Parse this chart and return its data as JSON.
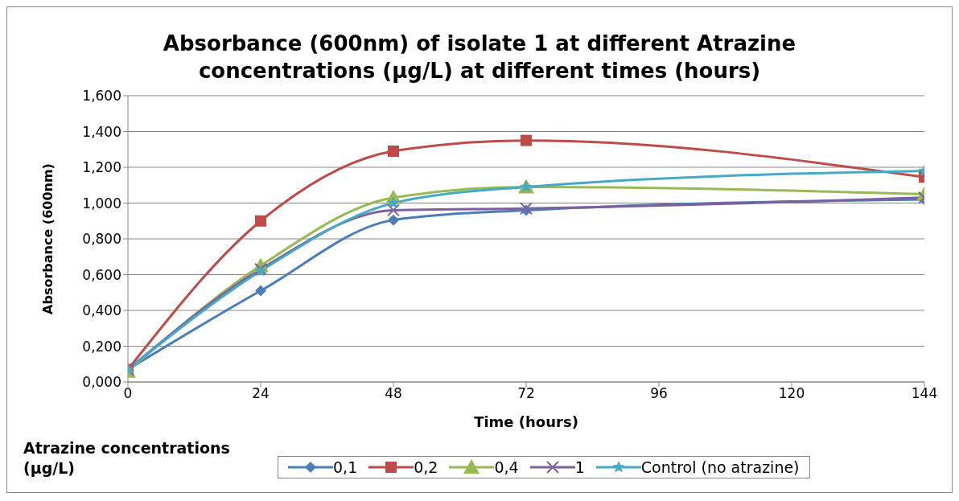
{
  "chart_data": {
    "type": "line",
    "title": "Absorbance (600nm) of isolate 1 at different Atrazine concentrations (µg/L) at different times (hours)",
    "xlabel": "Time (hours)",
    "ylabel": "Absorbance (600nm)",
    "legend_title": "Atrazine concentrations (µg/L)",
    "legend": "bottom",
    "grid": "y",
    "x": [
      0,
      24,
      48,
      72,
      144
    ],
    "xlim": [
      0,
      144
    ],
    "xticks": [
      0,
      24,
      48,
      72,
      96,
      120,
      144
    ],
    "ylim": [
      0,
      1.6
    ],
    "yticks": [
      {
        "value": 0,
        "label": "0,000"
      },
      {
        "value": 0.2,
        "label": "0,200"
      },
      {
        "value": 0.4,
        "label": "0,400"
      },
      {
        "value": 0.6,
        "label": "0,600"
      },
      {
        "value": 0.8,
        "label": "0,800"
      },
      {
        "value": 1,
        "label": "1,000"
      },
      {
        "value": 1.2,
        "label": "1,200"
      },
      {
        "value": 1.4,
        "label": "1,400"
      },
      {
        "value": 1.6,
        "label": "1,600"
      }
    ],
    "series": [
      {
        "name": "0,1",
        "color": "#4a7ebb",
        "marker": "diamond",
        "values": [
          0.07,
          0.51,
          0.905,
          0.96,
          1.02
        ]
      },
      {
        "name": "0,2",
        "color": "#be4b48",
        "marker": "square",
        "values": [
          0.07,
          0.9,
          1.29,
          1.35,
          1.145
        ]
      },
      {
        "name": "0,4",
        "color": "#98b954",
        "marker": "triangle",
        "values": [
          0.06,
          0.65,
          1.03,
          1.09,
          1.05
        ]
      },
      {
        "name": "1",
        "color": "#7d60a0",
        "marker": "cross",
        "values": [
          0.07,
          0.63,
          0.96,
          0.97,
          1.03
        ]
      },
      {
        "name": "Control (no atrazine)",
        "color": "#46aac5",
        "marker": "star",
        "values": [
          0.07,
          0.62,
          1.0,
          1.09,
          1.18
        ]
      }
    ]
  }
}
